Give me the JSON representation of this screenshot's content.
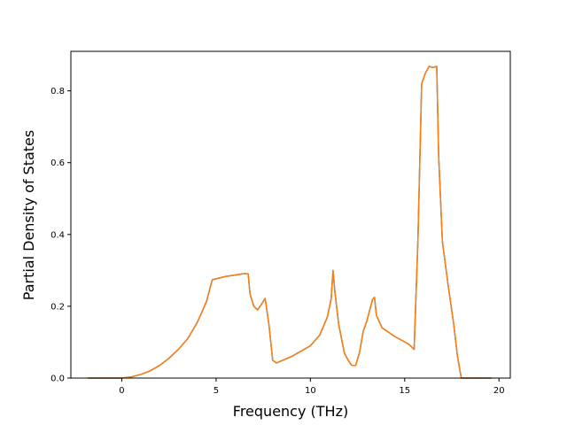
{
  "chart_data": {
    "type": "line",
    "title": "",
    "xlabel": "Frequency (THz)",
    "ylabel": "Partial Density of States",
    "xlim": [
      -2.7,
      20.6
    ],
    "ylim": [
      0.0,
      0.91
    ],
    "xticks": [
      0,
      5,
      10,
      15,
      20
    ],
    "yticks": [
      0.0,
      0.2,
      0.4,
      0.6,
      0.8
    ],
    "xtick_labels": [
      "0",
      "5",
      "10",
      "15",
      "20"
    ],
    "ytick_labels": [
      "0.0",
      "0.2",
      "0.4",
      "0.6",
      "0.8"
    ],
    "grid": false,
    "legend": "none",
    "series": [
      {
        "color": "#1f77b4",
        "x": [
          -1.8,
          0.0,
          0.5,
          1.0,
          1.5,
          2.0,
          2.5,
          3.0,
          3.5,
          4.0,
          4.3,
          4.5,
          4.7,
          4.8,
          5.5,
          6.5,
          6.7,
          6.8,
          7.0,
          7.2,
          7.4,
          7.6,
          7.8,
          8.0,
          8.2,
          9.0,
          10.0,
          10.5,
          10.9,
          11.1,
          11.2,
          11.3,
          11.5,
          11.8,
          12.0,
          12.2,
          12.4,
          12.6,
          12.8,
          13.0,
          13.3,
          13.4,
          13.5,
          13.8,
          14.5,
          15.2,
          15.5,
          15.7,
          15.9,
          16.1,
          16.3,
          16.5,
          16.7,
          16.8,
          17.0,
          17.3,
          17.6,
          17.8,
          18.0,
          19.6
        ],
        "y": [
          0.0,
          0.0,
          0.003,
          0.01,
          0.02,
          0.035,
          0.055,
          0.08,
          0.11,
          0.155,
          0.19,
          0.215,
          0.255,
          0.274,
          0.283,
          0.291,
          0.29,
          0.234,
          0.2,
          0.19,
          0.205,
          0.222,
          0.15,
          0.05,
          0.042,
          0.06,
          0.09,
          0.12,
          0.17,
          0.22,
          0.3,
          0.24,
          0.15,
          0.07,
          0.05,
          0.035,
          0.035,
          0.07,
          0.13,
          0.16,
          0.22,
          0.225,
          0.175,
          0.14,
          0.115,
          0.095,
          0.08,
          0.38,
          0.82,
          0.85,
          0.868,
          0.865,
          0.868,
          0.62,
          0.38,
          0.26,
          0.15,
          0.06,
          0.0,
          0.0
        ]
      },
      {
        "color": "#ff7f0e",
        "x": [
          -1.8,
          0.0,
          0.5,
          1.0,
          1.5,
          2.0,
          2.5,
          3.0,
          3.5,
          4.0,
          4.3,
          4.5,
          4.7,
          4.8,
          5.5,
          6.5,
          6.7,
          6.8,
          7.0,
          7.2,
          7.4,
          7.6,
          7.8,
          8.0,
          8.2,
          9.0,
          10.0,
          10.5,
          10.9,
          11.1,
          11.2,
          11.3,
          11.5,
          11.8,
          12.0,
          12.2,
          12.4,
          12.6,
          12.8,
          13.0,
          13.3,
          13.4,
          13.5,
          13.8,
          14.5,
          15.2,
          15.5,
          15.7,
          15.9,
          16.1,
          16.3,
          16.5,
          16.7,
          16.8,
          17.0,
          17.3,
          17.6,
          17.8,
          18.0,
          19.6
        ],
        "y": [
          0.0,
          0.0,
          0.003,
          0.01,
          0.02,
          0.035,
          0.055,
          0.08,
          0.11,
          0.155,
          0.19,
          0.215,
          0.255,
          0.274,
          0.283,
          0.291,
          0.29,
          0.234,
          0.2,
          0.19,
          0.205,
          0.222,
          0.15,
          0.05,
          0.042,
          0.06,
          0.09,
          0.12,
          0.17,
          0.22,
          0.3,
          0.24,
          0.15,
          0.07,
          0.05,
          0.035,
          0.035,
          0.07,
          0.13,
          0.16,
          0.22,
          0.225,
          0.175,
          0.14,
          0.115,
          0.095,
          0.08,
          0.38,
          0.82,
          0.85,
          0.868,
          0.865,
          0.868,
          0.62,
          0.38,
          0.26,
          0.15,
          0.06,
          0.0,
          0.0
        ]
      }
    ]
  }
}
